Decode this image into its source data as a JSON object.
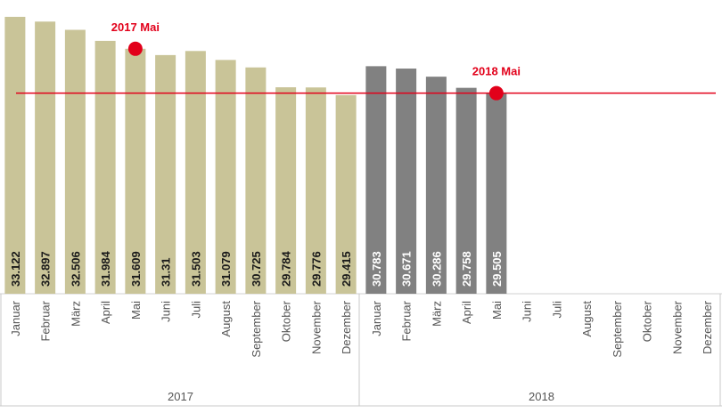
{
  "chart_data": {
    "type": "bar",
    "groups": [
      {
        "name": "2017",
        "color": "#c9c498",
        "label_color": "#1a1a1a",
        "categories": [
          "Januar",
          "Februar",
          "März",
          "April",
          "Mai",
          "Juni",
          "Juli",
          "August",
          "September",
          "Oktober",
          "November",
          "Dezember"
        ],
        "values": [
          33.122,
          32.897,
          32.506,
          31.984,
          31.609,
          31.31,
          31.503,
          31.079,
          30.725,
          29.784,
          29.776,
          29.415
        ]
      },
      {
        "name": "2018",
        "color": "#818181",
        "label_color": "#ffffff",
        "categories": [
          "Januar",
          "Februar",
          "März",
          "April",
          "Mai",
          "Juni",
          "Juli",
          "August",
          "September",
          "Oktober",
          "November",
          "Dezember"
        ],
        "values": [
          30.783,
          30.671,
          30.286,
          29.758,
          29.505,
          null,
          null,
          null,
          null,
          null,
          null,
          null
        ]
      }
    ],
    "annotations": [
      "2017 Mai",
      "2018 Mai"
    ],
    "annotation_color": "#e2001a",
    "ylim": [
      20,
      33.92
    ]
  }
}
